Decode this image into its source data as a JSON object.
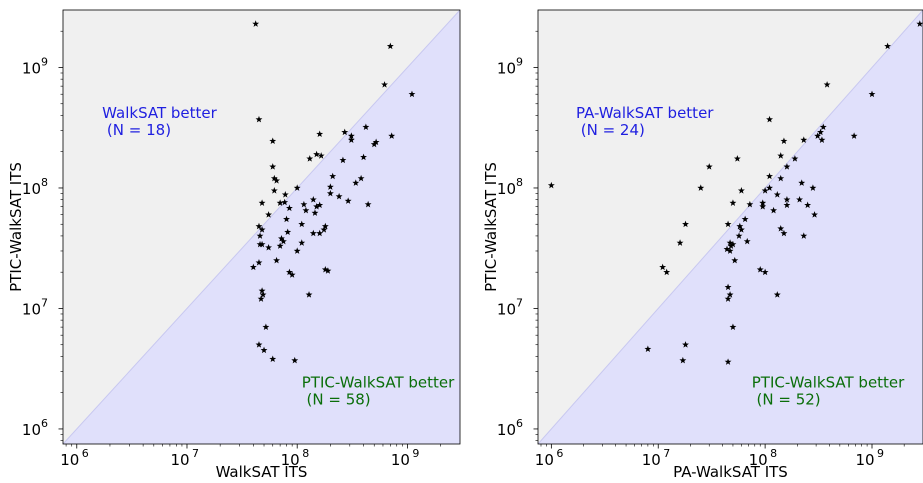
{
  "chart_data": [
    {
      "type": "scatter",
      "xlabel": "WalkSAT ITS",
      "ylabel": "PTIC-WalkSAT ITS",
      "xscale": "log",
      "yscale": "log",
      "xlim": [
        750000,
        3000000000
      ],
      "ylim": [
        750000,
        3000000000
      ],
      "x_ticks": [
        {
          "value": 1000000,
          "base": "10",
          "exp": "6"
        },
        {
          "value": 10000000,
          "base": "10",
          "exp": "7"
        },
        {
          "value": 100000000,
          "base": "10",
          "exp": "8"
        },
        {
          "value": 1000000000,
          "base": "10",
          "exp": "9"
        }
      ],
      "y_ticks": [
        {
          "value": 1000000,
          "base": "10",
          "exp": "6"
        },
        {
          "value": 10000000,
          "base": "10",
          "exp": "7"
        },
        {
          "value": 100000000,
          "base": "10",
          "exp": "8"
        },
        {
          "value": 1000000000,
          "base": "10",
          "exp": "9"
        }
      ],
      "marker": "star",
      "marker_color": "#000000",
      "region_colors": {
        "upper": "#f0f0f0",
        "lower": "#e0e0fb",
        "diagonal": "#c8c8f0"
      },
      "annotations": [
        {
          "lines": [
            "WalkSAT better",
            " (N = 18)"
          ],
          "color": "#1f1fe0",
          "at": [
            1700000,
            380000000
          ]
        },
        {
          "lines": [
            "PTIC-WalkSAT better",
            " (N = 58)"
          ],
          "color": "#0a6e0a",
          "at": [
            110000000,
            2200000
          ]
        }
      ],
      "points": [
        [
          42000000,
          2300000000
        ],
        [
          700000000,
          1500000000
        ],
        [
          620000000,
          720000000
        ],
        [
          1100000000,
          600000000
        ],
        [
          45000000,
          370000000
        ],
        [
          420000000,
          320000000
        ],
        [
          270000000,
          290000000
        ],
        [
          160000000,
          280000000
        ],
        [
          310000000,
          270000000
        ],
        [
          720000000,
          270000000
        ],
        [
          310000000,
          250000000
        ],
        [
          60000000,
          245000000
        ],
        [
          520000000,
          240000000
        ],
        [
          500000000,
          230000000
        ],
        [
          150000000,
          190000000
        ],
        [
          165000000,
          185000000
        ],
        [
          400000000,
          180000000
        ],
        [
          260000000,
          170000000
        ],
        [
          60000000,
          150000000
        ],
        [
          130000000,
          175000000
        ],
        [
          62000000,
          120000000
        ],
        [
          65000000,
          115000000
        ],
        [
          210000000,
          125000000
        ],
        [
          380000000,
          120000000
        ],
        [
          340000000,
          110000000
        ],
        [
          100000000,
          100000000
        ],
        [
          200000000,
          102000000
        ],
        [
          62000000,
          95000000
        ],
        [
          78000000,
          88000000
        ],
        [
          200000000,
          90000000
        ],
        [
          240000000,
          85000000
        ],
        [
          140000000,
          80000000
        ],
        [
          290000000,
          78000000
        ],
        [
          48000000,
          75000000
        ],
        [
          70000000,
          75000000
        ],
        [
          77000000,
          76000000
        ],
        [
          440000000,
          73000000
        ],
        [
          115000000,
          73000000
        ],
        [
          150000000,
          70000000
        ],
        [
          160000000,
          72000000
        ],
        [
          85000000,
          68000000
        ],
        [
          120000000,
          65000000
        ],
        [
          55000000,
          60000000
        ],
        [
          145000000,
          62000000
        ],
        [
          80000000,
          55000000
        ],
        [
          110000000,
          50000000
        ],
        [
          180000000,
          48000000
        ],
        [
          175000000,
          45000000
        ],
        [
          45000000,
          48000000
        ],
        [
          48000000,
          45000000
        ],
        [
          82000000,
          43000000
        ],
        [
          140000000,
          42000000
        ],
        [
          160000000,
          42000000
        ],
        [
          46000000,
          40000000
        ],
        [
          72000000,
          38000000
        ],
        [
          75000000,
          36000000
        ],
        [
          110000000,
          35000000
        ],
        [
          46000000,
          34000000
        ],
        [
          48000000,
          34000000
        ],
        [
          70000000,
          33000000
        ],
        [
          55000000,
          32000000
        ],
        [
          100000000,
          30000000
        ],
        [
          65000000,
          25000000
        ],
        [
          45000000,
          24000000
        ],
        [
          40000000,
          22000000
        ],
        [
          85000000,
          20000000
        ],
        [
          180000000,
          21000000
        ],
        [
          190000000,
          20500000
        ],
        [
          90000000,
          19000000
        ],
        [
          48000000,
          14000000
        ],
        [
          49000000,
          13000000
        ],
        [
          47000000,
          12000000
        ],
        [
          128000000,
          13000000
        ],
        [
          52000000,
          7000000
        ],
        [
          45000000,
          5000000
        ],
        [
          50000000,
          4500000
        ],
        [
          60000000,
          3800000
        ],
        [
          95000000,
          3700000
        ]
      ]
    },
    {
      "type": "scatter",
      "xlabel": "PA-WalkSAT ITS",
      "ylabel": "PTIC-WalkSAT ITS",
      "xscale": "log",
      "yscale": "log",
      "xlim": [
        750000,
        3000000000
      ],
      "ylim": [
        750000,
        3000000000
      ],
      "x_ticks": [
        {
          "value": 1000000,
          "base": "10",
          "exp": "6"
        },
        {
          "value": 10000000,
          "base": "10",
          "exp": "7"
        },
        {
          "value": 100000000,
          "base": "10",
          "exp": "8"
        },
        {
          "value": 1000000000,
          "base": "10",
          "exp": "9"
        }
      ],
      "y_ticks": [
        {
          "value": 1000000,
          "base": "10",
          "exp": "6"
        },
        {
          "value": 10000000,
          "base": "10",
          "exp": "7"
        },
        {
          "value": 100000000,
          "base": "10",
          "exp": "8"
        },
        {
          "value": 1000000000,
          "base": "10",
          "exp": "9"
        }
      ],
      "marker": "star",
      "marker_color": "#000000",
      "region_colors": {
        "upper": "#f0f0f0",
        "lower": "#e0e0fb",
        "diagonal": "#c8c8f0"
      },
      "annotations": [
        {
          "lines": [
            "PA-WalkSAT better",
            " (N = 24)"
          ],
          "color": "#1f1fe0",
          "at": [
            1700000,
            380000000
          ]
        },
        {
          "lines": [
            "PTIC-WalkSAT better",
            " (N = 52)"
          ],
          "color": "#0a6e0a",
          "at": [
            75000000,
            2200000
          ]
        }
      ],
      "points": [
        [
          2800000000,
          2300000000
        ],
        [
          1400000000,
          1500000000
        ],
        [
          1000000000,
          600000000
        ],
        [
          380000000,
          720000000
        ],
        [
          110000000,
          370000000
        ],
        [
          350000000,
          320000000
        ],
        [
          330000000,
          290000000
        ],
        [
          310000000,
          270000000
        ],
        [
          680000000,
          270000000
        ],
        [
          340000000,
          250000000
        ],
        [
          230000000,
          250000000
        ],
        [
          150000000,
          245000000
        ],
        [
          140000000,
          185000000
        ],
        [
          55000000,
          175000000
        ],
        [
          190000000,
          175000000
        ],
        [
          280000000,
          100000000
        ],
        [
          1000000,
          105000000
        ],
        [
          30000000,
          150000000
        ],
        [
          25000000,
          100000000
        ],
        [
          110000000,
          125000000
        ],
        [
          160000000,
          150000000
        ],
        [
          140000000,
          120000000
        ],
        [
          220000000,
          110000000
        ],
        [
          110000000,
          100000000
        ],
        [
          100000000,
          95000000
        ],
        [
          60000000,
          95000000
        ],
        [
          130000000,
          88000000
        ],
        [
          160000000,
          80000000
        ],
        [
          210000000,
          80000000
        ],
        [
          95000000,
          75000000
        ],
        [
          50000000,
          75000000
        ],
        [
          72000000,
          73000000
        ],
        [
          95000000,
          70000000
        ],
        [
          120000000,
          65000000
        ],
        [
          160000000,
          72000000
        ],
        [
          250000000,
          72000000
        ],
        [
          65000000,
          55000000
        ],
        [
          290000000,
          60000000
        ],
        [
          18000000,
          50000000
        ],
        [
          45000000,
          50000000
        ],
        [
          58000000,
          48000000
        ],
        [
          60000000,
          45000000
        ],
        [
          150000000,
          42000000
        ],
        [
          230000000,
          40000000
        ],
        [
          140000000,
          46000000
        ],
        [
          57000000,
          40000000
        ],
        [
          16000000,
          35000000
        ],
        [
          47000000,
          35000000
        ],
        [
          50000000,
          34000000
        ],
        [
          68000000,
          36000000
        ],
        [
          48000000,
          33000000
        ],
        [
          44000000,
          31000000
        ],
        [
          47000000,
          30000000
        ],
        [
          52000000,
          25000000
        ],
        [
          11000000,
          22000000
        ],
        [
          12000000,
          20000000
        ],
        [
          90000000,
          21000000
        ],
        [
          100000000,
          20000000
        ],
        [
          45000000,
          15000000
        ],
        [
          47000000,
          13000000
        ],
        [
          45000000,
          12000000
        ],
        [
          130000000,
          13000000
        ],
        [
          50000000,
          7000000
        ],
        [
          18000000,
          5000000
        ],
        [
          8000000,
          4600000
        ],
        [
          17000000,
          3700000
        ],
        [
          45000000,
          3600000
        ]
      ]
    }
  ]
}
